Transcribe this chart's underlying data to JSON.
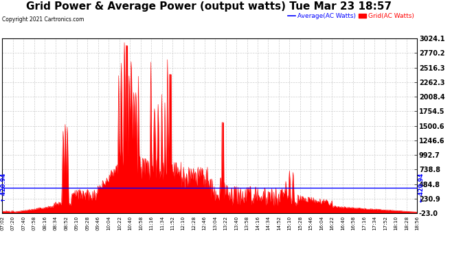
{
  "title": "Grid Power & Average Power (output watts) Tue Mar 23 18:57",
  "copyright": "Copyright 2021 Cartronics.com",
  "legend_average": "Average(AC Watts)",
  "legend_grid": "Grid(AC Watts)",
  "ymin": -23.0,
  "ymax": 3024.1,
  "average_value": 420.94,
  "yticks": [
    -23.0,
    230.9,
    484.8,
    738.8,
    992.7,
    1246.6,
    1500.6,
    1754.5,
    2008.4,
    2262.3,
    2516.3,
    2770.2,
    3024.1
  ],
  "background_color": "#ffffff",
  "plot_bg_color": "#ffffff",
  "grid_color": "#cccccc",
  "area_color": "#ff0000",
  "average_color": "#0000ff",
  "title_fontsize": 11,
  "label_fontsize": 7,
  "xtick_labels": [
    "07:02",
    "07:20",
    "07:40",
    "07:58",
    "08:16",
    "08:34",
    "08:52",
    "09:10",
    "09:28",
    "09:46",
    "10:04",
    "10:22",
    "10:40",
    "10:58",
    "11:16",
    "11:34",
    "11:52",
    "12:10",
    "12:28",
    "12:46",
    "13:04",
    "13:22",
    "13:40",
    "13:58",
    "14:16",
    "14:34",
    "14:52",
    "15:10",
    "15:28",
    "15:46",
    "16:04",
    "16:22",
    "16:40",
    "16:58",
    "17:16",
    "17:34",
    "17:52",
    "18:10",
    "18:28",
    "18:56"
  ]
}
